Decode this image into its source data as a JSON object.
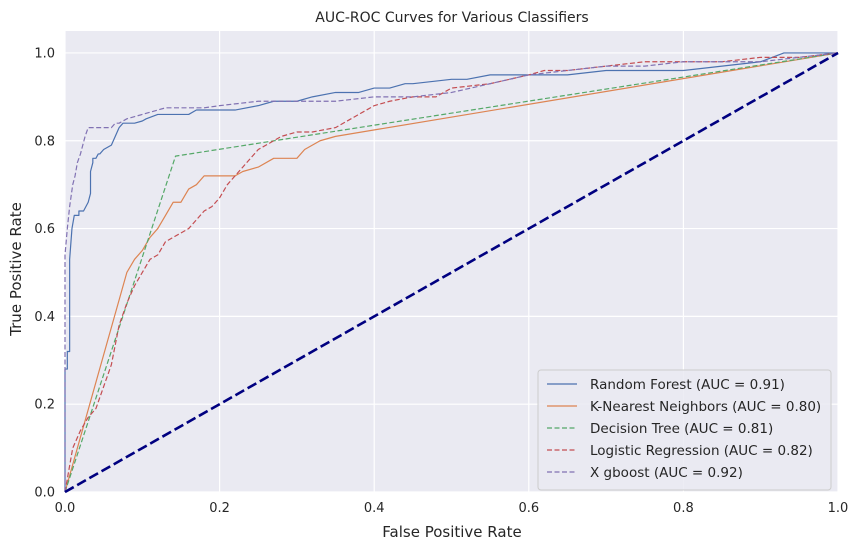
{
  "chart_data": {
    "type": "line",
    "title": "AUC-ROC Curves for Various Classifiers",
    "xlabel": "False Positive Rate",
    "ylabel": "True Positive Rate",
    "xlim": [
      0.0,
      1.0
    ],
    "ylim": [
      0.0,
      1.05
    ],
    "xticks": [
      "0.0",
      "0.2",
      "0.4",
      "0.6",
      "0.8",
      "1.0"
    ],
    "yticks": [
      "0.0",
      "0.2",
      "0.4",
      "0.6",
      "0.8",
      "1.0"
    ],
    "grid": true,
    "background": "#eaeaf2",
    "legend_position": "lower right",
    "series": [
      {
        "name": "Random Forest (AUC = 0.91)",
        "color": "#4c72b0",
        "style": "solid",
        "x": [
          0.0,
          0.0,
          0.003,
          0.003,
          0.006,
          0.006,
          0.009,
          0.012,
          0.018,
          0.018,
          0.024,
          0.027,
          0.03,
          0.033,
          0.033,
          0.036,
          0.036,
          0.04,
          0.043,
          0.045,
          0.05,
          0.06,
          0.065,
          0.07,
          0.075,
          0.08,
          0.09,
          0.1,
          0.105,
          0.12,
          0.13,
          0.14,
          0.15,
          0.16,
          0.17,
          0.18,
          0.2,
          0.21,
          0.22,
          0.25,
          0.27,
          0.28,
          0.3,
          0.32,
          0.35,
          0.38,
          0.4,
          0.42,
          0.44,
          0.45,
          0.5,
          0.52,
          0.55,
          0.57,
          0.6,
          0.65,
          0.7,
          0.75,
          0.8,
          0.85,
          0.9,
          0.93,
          0.95,
          1.0
        ],
        "y": [
          0.0,
          0.28,
          0.28,
          0.32,
          0.32,
          0.53,
          0.6,
          0.63,
          0.63,
          0.64,
          0.64,
          0.65,
          0.66,
          0.68,
          0.73,
          0.75,
          0.76,
          0.76,
          0.77,
          0.77,
          0.78,
          0.79,
          0.81,
          0.83,
          0.84,
          0.84,
          0.84,
          0.845,
          0.85,
          0.86,
          0.86,
          0.86,
          0.86,
          0.86,
          0.87,
          0.87,
          0.87,
          0.87,
          0.87,
          0.88,
          0.89,
          0.89,
          0.89,
          0.9,
          0.91,
          0.91,
          0.92,
          0.92,
          0.93,
          0.93,
          0.94,
          0.94,
          0.95,
          0.95,
          0.95,
          0.95,
          0.96,
          0.96,
          0.96,
          0.97,
          0.98,
          1.0,
          1.0,
          1.0
        ]
      },
      {
        "name": "K-Nearest Neighbors (AUC = 0.80)",
        "color": "#dd8452",
        "style": "solid",
        "x": [
          0.0,
          0.08,
          0.09,
          0.1,
          0.11,
          0.12,
          0.13,
          0.14,
          0.15,
          0.16,
          0.17,
          0.18,
          0.19,
          0.2,
          0.22,
          0.23,
          0.25,
          0.27,
          0.29,
          0.3,
          0.31,
          0.33,
          0.35,
          1.0
        ],
        "y": [
          0.0,
          0.5,
          0.53,
          0.55,
          0.58,
          0.6,
          0.63,
          0.66,
          0.66,
          0.69,
          0.7,
          0.72,
          0.72,
          0.72,
          0.72,
          0.73,
          0.74,
          0.76,
          0.76,
          0.76,
          0.78,
          0.8,
          0.81,
          1.0
        ]
      },
      {
        "name": "Decision Tree (AUC = 0.81)",
        "color": "#55a868",
        "style": "dashed",
        "x": [
          0.0,
          0.143,
          1.0
        ],
        "y": [
          0.0,
          0.765,
          1.0
        ]
      },
      {
        "name": "Logistic Regression (AUC = 0.82)",
        "color": "#c44e52",
        "style": "dashed",
        "x": [
          0.0,
          0.01,
          0.02,
          0.03,
          0.04,
          0.05,
          0.06,
          0.07,
          0.08,
          0.09,
          0.1,
          0.11,
          0.12,
          0.13,
          0.14,
          0.15,
          0.16,
          0.17,
          0.18,
          0.19,
          0.2,
          0.21,
          0.22,
          0.23,
          0.24,
          0.25,
          0.26,
          0.27,
          0.28,
          0.3,
          0.32,
          0.35,
          0.38,
          0.4,
          0.42,
          0.45,
          0.48,
          0.5,
          0.55,
          0.6,
          0.62,
          0.65,
          0.7,
          0.75,
          0.8,
          0.85,
          0.9,
          0.95,
          1.0
        ],
        "y": [
          0.0,
          0.1,
          0.14,
          0.17,
          0.19,
          0.24,
          0.29,
          0.38,
          0.43,
          0.47,
          0.5,
          0.53,
          0.54,
          0.57,
          0.58,
          0.59,
          0.6,
          0.62,
          0.64,
          0.65,
          0.67,
          0.7,
          0.72,
          0.74,
          0.76,
          0.78,
          0.79,
          0.8,
          0.81,
          0.82,
          0.82,
          0.83,
          0.86,
          0.88,
          0.89,
          0.9,
          0.9,
          0.92,
          0.93,
          0.95,
          0.96,
          0.96,
          0.97,
          0.98,
          0.98,
          0.98,
          0.99,
          0.99,
          1.0
        ]
      },
      {
        "name": "X gboost (AUC = 0.92)",
        "color": "#8172b3",
        "style": "dashed",
        "x": [
          0.0,
          0.0,
          0.003,
          0.006,
          0.01,
          0.013,
          0.016,
          0.02,
          0.023,
          0.026,
          0.03,
          0.033,
          0.04,
          0.05,
          0.06,
          0.065,
          0.07,
          0.08,
          0.1,
          0.12,
          0.13,
          0.15,
          0.18,
          0.2,
          0.25,
          0.3,
          0.35,
          0.4,
          0.45,
          0.5,
          0.55,
          0.6,
          0.65,
          0.7,
          0.75,
          0.8,
          0.85,
          0.9,
          0.95,
          1.0
        ],
        "y": [
          0.0,
          0.54,
          0.6,
          0.65,
          0.7,
          0.72,
          0.75,
          0.77,
          0.79,
          0.81,
          0.83,
          0.83,
          0.83,
          0.83,
          0.83,
          0.84,
          0.84,
          0.85,
          0.86,
          0.87,
          0.875,
          0.875,
          0.875,
          0.88,
          0.89,
          0.89,
          0.89,
          0.9,
          0.9,
          0.91,
          0.93,
          0.95,
          0.96,
          0.97,
          0.97,
          0.98,
          0.98,
          0.98,
          0.99,
          1.0
        ]
      },
      {
        "name": "",
        "color": "#000080",
        "style": "dashed-bold",
        "x": [
          0.0,
          1.0
        ],
        "y": [
          0.0,
          1.0
        ]
      }
    ]
  }
}
